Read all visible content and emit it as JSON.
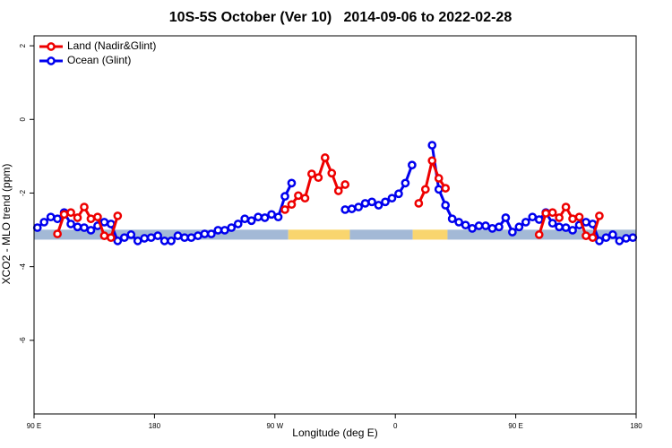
{
  "chart_data": {
    "type": "line",
    "title": "10S-5S October (Ver 10)   2014-09-06 to 2022-02-28",
    "xlabel": "Longitude (deg E)",
    "ylabel": "XCO2 - MLO trend (ppm)",
    "xlim": [
      90,
      540
    ],
    "ylim": [
      -8,
      2.27
    ],
    "xticks": [
      {
        "value": 90,
        "label": "90 E"
      },
      180,
      {
        "value": 270,
        "label": "90 W"
      },
      {
        "value": 360,
        "label": "0"
      },
      {
        "value": 450,
        "label": "90 E"
      },
      {
        "value": 540,
        "label": "180"
      }
    ],
    "yticks": [
      2,
      0,
      -2,
      -4,
      -6
    ],
    "legend": "top-left",
    "band": {
      "y": -3.13,
      "height": 0.27,
      "segments": [
        {
          "from": 90,
          "to": 280,
          "color": "#a3b9d6"
        },
        {
          "from": 280,
          "to": 326,
          "color": "#f9d56e"
        },
        {
          "from": 326,
          "to": 373,
          "color": "#a3b9d6"
        },
        {
          "from": 373,
          "to": 399,
          "color": "#f9d56e"
        },
        {
          "from": 399,
          "to": 540,
          "color": "#a3b9d6"
        }
      ]
    },
    "series": [
      {
        "name": "Land (Nadir&Glint)",
        "color": "#ee0000",
        "x": [
          107.5,
          112.5,
          117.5,
          122.5,
          127.5,
          132.5,
          137.5,
          142.5,
          147.5,
          152.5,
          157.5,
          277.5,
          282.5,
          287.5,
          292.5,
          297.5,
          302.5,
          307.5,
          312.5,
          317.5,
          322.5,
          327.5,
          377.5,
          382.5,
          387.5,
          392.5,
          397.5,
          402.5,
          467.5,
          472.5,
          477.5,
          482.5,
          487.5,
          492.5,
          497.5,
          502.5,
          507.5,
          512.5
        ],
        "values": [
          -3.11,
          -2.58,
          -2.53,
          -2.67,
          -2.38,
          -2.7,
          -2.65,
          -3.16,
          -3.21,
          -2.62,
          null,
          -2.45,
          -2.31,
          -2.07,
          -2.14,
          -1.48,
          -1.58,
          -1.04,
          -1.46,
          -1.94,
          -1.77,
          null,
          -2.28,
          -1.9,
          -1.12,
          -1.6,
          -1.87,
          null,
          -3.13,
          -2.55,
          -2.53,
          -2.67,
          -2.38,
          -2.7,
          -2.65,
          -3.16,
          -3.21,
          -2.62
        ]
      },
      {
        "name": "Ocean (Glint)",
        "color": "#0000ee",
        "x": [
          92.5,
          97.5,
          102.5,
          107.5,
          112.5,
          117.5,
          122.5,
          127.5,
          132.5,
          137.5,
          142.5,
          147.5,
          152.5,
          157.5,
          162.5,
          167.5,
          172.5,
          177.5,
          182.5,
          187.5,
          192.5,
          197.5,
          202.5,
          207.5,
          212.5,
          217.5,
          222.5,
          227.5,
          232.5,
          237.5,
          242.5,
          247.5,
          252.5,
          257.5,
          262.5,
          267.5,
          272.5,
          277.5,
          282.5,
          287.5,
          292.5,
          297.5,
          302.5,
          307.5,
          312.5,
          317.5,
          322.5,
          327.5,
          332.5,
          337.5,
          342.5,
          347.5,
          352.5,
          357.5,
          362.5,
          367.5,
          372.5,
          377.5,
          382.5,
          387.5,
          392.5,
          397.5,
          402.5,
          407.5,
          412.5,
          417.5,
          422.5,
          427.5,
          432.5,
          437.5,
          442.5,
          447.5,
          452.5,
          457.5,
          462.5,
          467.5,
          472.5,
          477.5,
          482.5,
          487.5,
          492.5,
          497.5,
          502.5,
          507.5,
          512.5,
          517.5,
          522.5,
          527.5,
          532.5,
          537.5
        ],
        "values": [
          -2.94,
          -2.79,
          -2.65,
          -2.7,
          -2.53,
          -2.84,
          -2.92,
          -2.94,
          -3.01,
          -2.89,
          -2.79,
          -2.84,
          -3.3,
          -3.21,
          -3.13,
          -3.3,
          -3.23,
          -3.21,
          -3.16,
          -3.3,
          -3.3,
          -3.16,
          -3.21,
          -3.21,
          -3.16,
          -3.11,
          -3.11,
          -3.01,
          -3.01,
          -2.94,
          -2.84,
          -2.7,
          -2.75,
          -2.65,
          -2.67,
          -2.58,
          -2.65,
          -2.09,
          -1.73,
          null,
          null,
          null,
          null,
          null,
          null,
          null,
          -2.45,
          -2.43,
          -2.38,
          -2.28,
          -2.24,
          -2.33,
          -2.24,
          -2.14,
          -2.02,
          -1.73,
          -1.24,
          null,
          null,
          -0.7,
          -1.9,
          -2.33,
          -2.7,
          -2.79,
          -2.87,
          -2.96,
          -2.89,
          -2.89,
          -2.96,
          -2.92,
          -2.67,
          -3.06,
          -2.92,
          -2.79,
          -2.65,
          -2.72,
          -2.53,
          -2.82,
          -2.92,
          -2.94,
          -3.01,
          -2.87,
          -2.79,
          -2.84,
          -3.3,
          -3.21,
          -3.13,
          -3.3,
          -3.23,
          -3.21
        ]
      }
    ]
  }
}
